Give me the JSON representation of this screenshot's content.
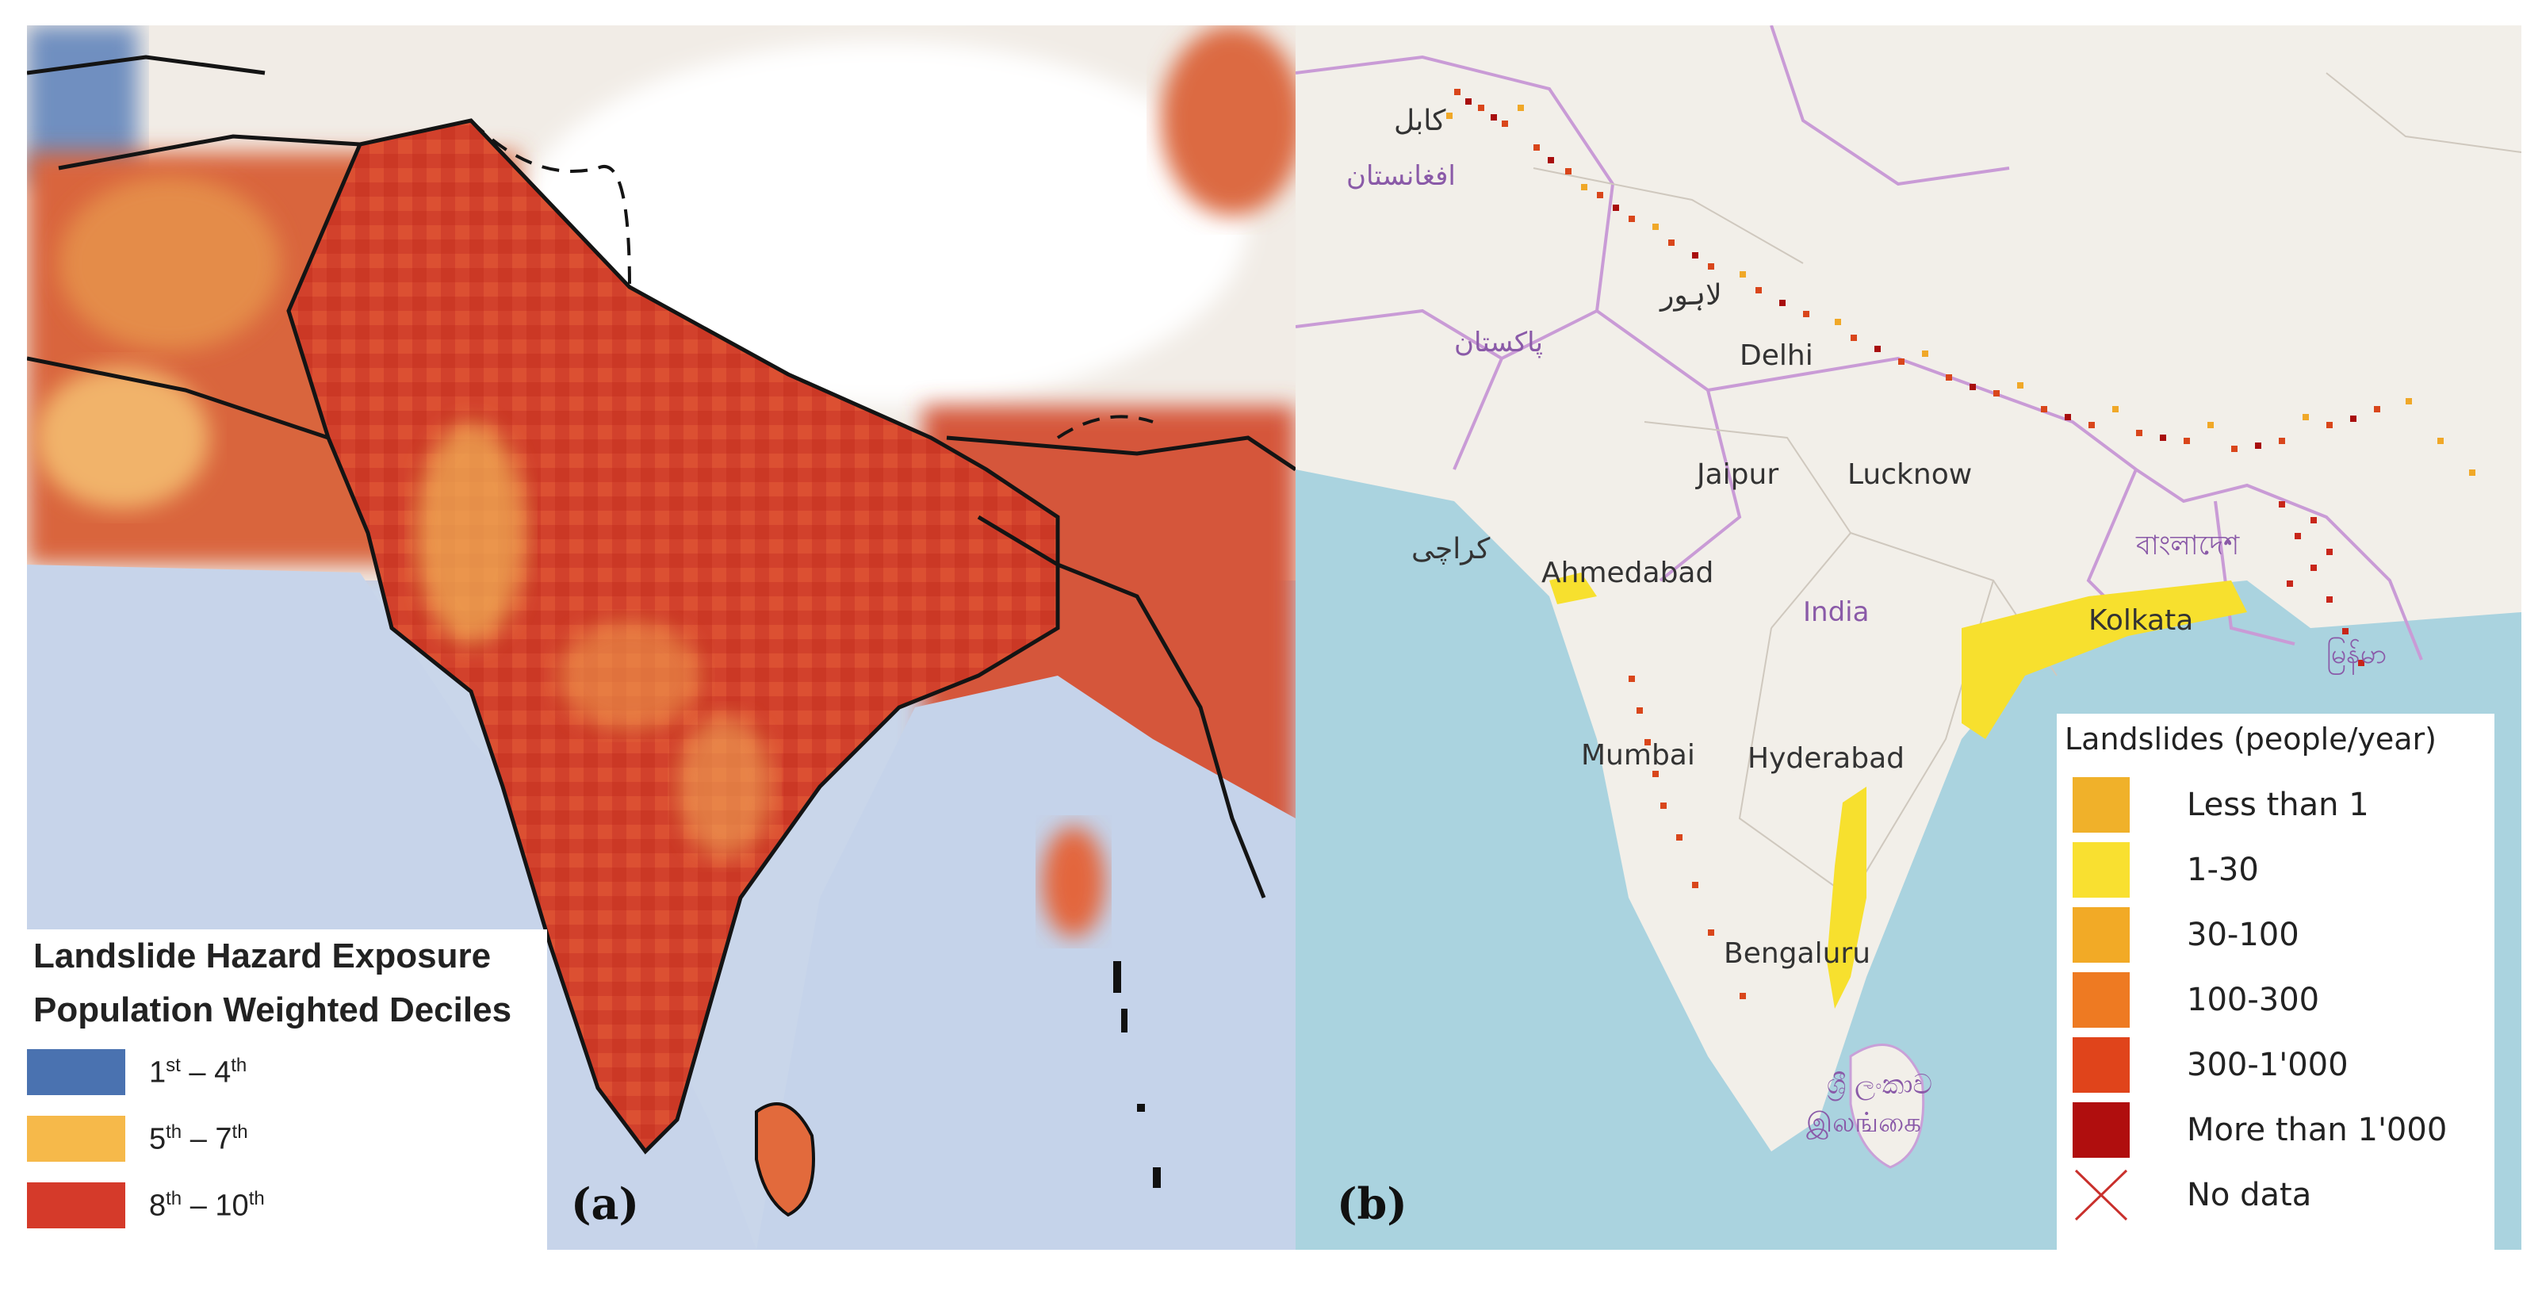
{
  "panel_a": {
    "label": "(a)",
    "legend": {
      "title_line1": "Landslide Hazard Exposure",
      "title_line2": "Population Weighted Deciles",
      "items": [
        {
          "from": "1",
          "from_sup": "st",
          "to": "4",
          "to_sup": "th",
          "color": "#4a72b0"
        },
        {
          "from": "5",
          "from_sup": "th",
          "to": "7",
          "to_sup": "th",
          "color": "#f6b94a"
        },
        {
          "from": "8",
          "from_sup": "th",
          "to": "10",
          "to_sup": "th",
          "color": "#d53a2a"
        }
      ]
    }
  },
  "panel_b": {
    "label": "(b)",
    "places": {
      "kabul": "کابل",
      "afghanistan": "افغانستان",
      "lahore": "لاہور",
      "pakistan": "پاکستان",
      "karachi": "کراچی",
      "delhi": "Delhi",
      "jaipur": "Jaipur",
      "lucknow": "Lucknow",
      "ahmedabad": "Ahmedabad",
      "india": "India",
      "bangladesh": "বাংলাদেশ",
      "kolkata": "Kolkata",
      "mumbai": "Mumbai",
      "hyderabad": "Hyderabad",
      "bengaluru": "Bengaluru",
      "srilanka_line1": "ශ්‍රී ලංකාව",
      "srilanka_line2": "இலங்கை",
      "myanmar": "မြန်မာ"
    },
    "legend": {
      "title": "Landslides (people/year)",
      "items": [
        {
          "label": "Less than 1",
          "color": "#f0b12a"
        },
        {
          "label": "1-30",
          "color": "#f9e030"
        },
        {
          "label": "30-100",
          "color": "#f2aa26"
        },
        {
          "label": "100-300",
          "color": "#ee7a22"
        },
        {
          "label": "300-1'000",
          "color": "#e0441b"
        },
        {
          "label": "More than 1'000",
          "color": "#b00e0e"
        },
        {
          "label": "No data",
          "icon": "cross-icon",
          "color": "#c9302c"
        }
      ]
    }
  }
}
